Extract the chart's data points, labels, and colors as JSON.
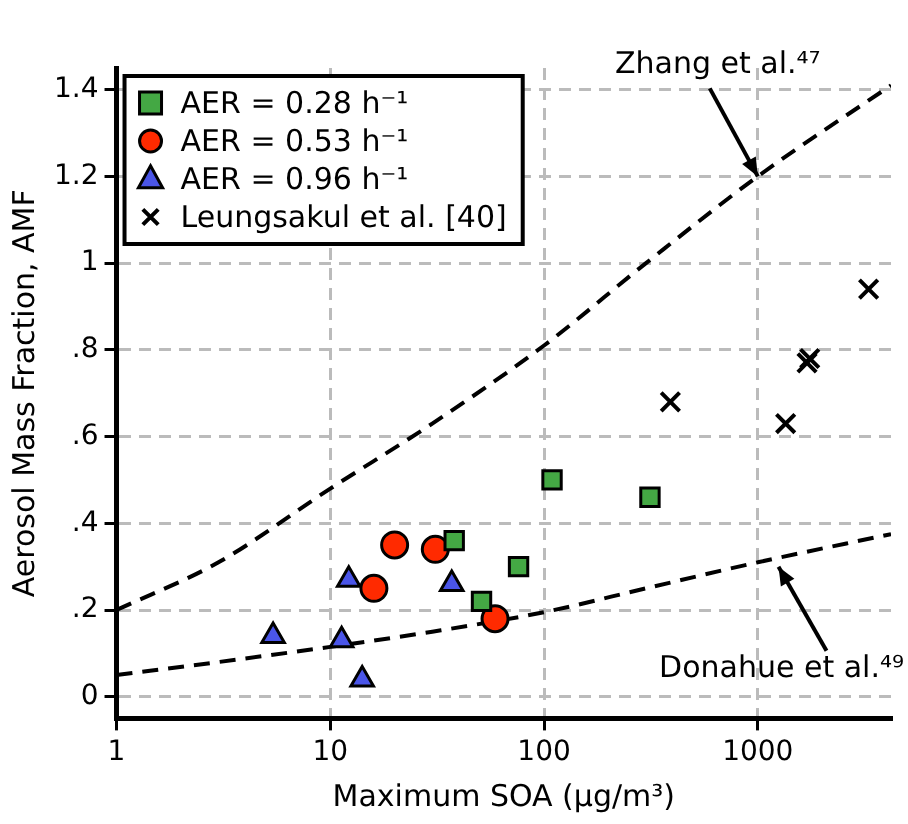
{
  "chart_data": {
    "type": "scatter",
    "xlabel": "Maximum SOA (μg/m³)",
    "ylabel": "Aerosol Mass Fraction, AMF",
    "log": "x",
    "grid": true,
    "legend": "top left",
    "xlim": [
      1,
      4200
    ],
    "xticks": [
      1,
      10,
      100,
      1000
    ],
    "ylim": [
      -0.05,
      1.45
    ],
    "yticks": [
      0,
      {
        "value": 0.2,
        "label": ".2"
      },
      {
        "value": 0.4,
        "label": ".4"
      },
      {
        "value": 0.6,
        "label": ".6"
      },
      {
        "value": 0.8,
        "label": ".8"
      },
      {
        "value": 1,
        "label": "1"
      },
      {
        "value": 1.2,
        "label": "1.2"
      },
      {
        "value": 1.4,
        "label": "1.4"
      }
    ],
    "series": [
      {
        "name": "AER = 0.28 h⁻¹",
        "color": "#44a844",
        "marker": "square",
        "x": [
          109,
          313,
          38,
          76,
          51
        ],
        "values": [
          0.5,
          0.46,
          0.36,
          0.3,
          0.22
        ]
      },
      {
        "name": "AER = 0.53 h⁻¹",
        "color": "#ff2a00",
        "marker": "circle",
        "x": [
          20,
          31,
          16,
          59
        ],
        "values": [
          0.35,
          0.34,
          0.25,
          0.18
        ]
      },
      {
        "name": "AER = 0.96 h⁻¹",
        "color": "#4a55e8",
        "marker": "triangle",
        "x": [
          12.2,
          37,
          5.4,
          11.3,
          14.1
        ],
        "values": [
          0.27,
          0.26,
          0.14,
          0.13,
          0.04
        ]
      },
      {
        "name": "Leungsakul et al. [40]",
        "color": "#000000",
        "marker": "cross",
        "x": [
          3300,
          1750,
          1700,
          390,
          1350
        ],
        "values": [
          0.94,
          0.78,
          0.77,
          0.68,
          0.63
        ]
      },
      {
        "type": "line",
        "color": "#000000",
        "marker": "none",
        "line_style": "dashed",
        "x": [
          1,
          3,
          10,
          30,
          100,
          300,
          1000,
          4200
        ],
        "values": [
          0.2,
          0.31,
          0.48,
          0.63,
          0.81,
          1.0,
          1.2,
          1.41
        ]
      },
      {
        "type": "line",
        "color": "#000000",
        "marker": "none",
        "line_style": "dashed",
        "x": [
          1,
          3,
          10,
          30,
          100,
          300,
          1000,
          4200
        ],
        "values": [
          0.05,
          0.08,
          0.115,
          0.15,
          0.195,
          0.25,
          0.31,
          0.375
        ]
      }
    ],
    "annotations": [
      {
        "text": "Zhang et al.⁴⁷",
        "x": 1000,
        "y": 1.2
      },
      {
        "text": "Donahue et al.⁴⁹",
        "x": 1250,
        "y": 0.3
      }
    ]
  }
}
